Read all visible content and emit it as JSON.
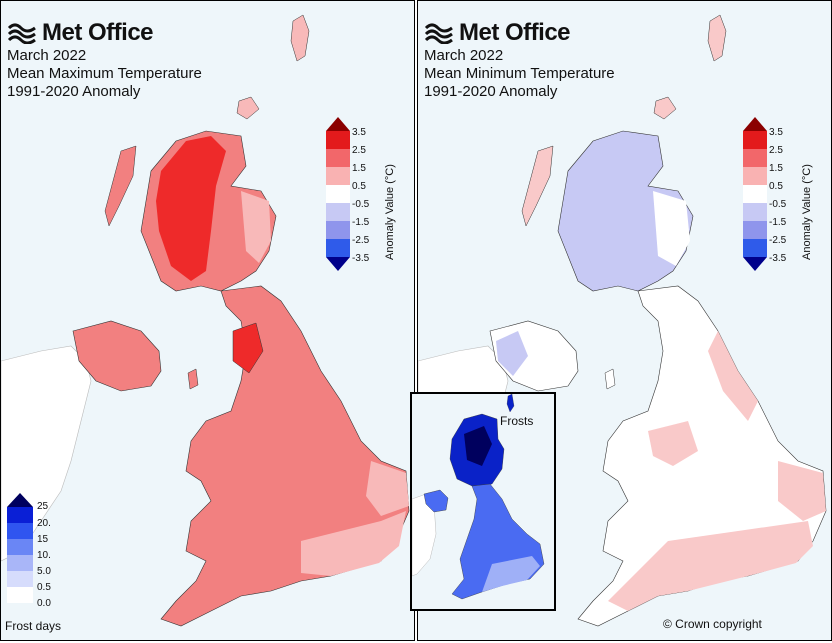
{
  "brand": "Met Office",
  "left_panel": {
    "title_lines": [
      "March 2022",
      "Mean Maximum Temperature",
      "1991-2020 Anomaly"
    ]
  },
  "right_panel": {
    "title_lines": [
      "March 2022",
      "Mean Minimum Temperature",
      "1991-2020 Anomaly"
    ]
  },
  "anomaly_legend": {
    "axis_label": "Anomaly Value (°C)",
    "ticks": [
      "3.5",
      "2.5",
      "1.5",
      "0.5",
      "-0.5",
      "-1.5",
      "-2.5",
      "-3.5"
    ],
    "colors": {
      "over": "#8b0000",
      "b1": "#e31a1c",
      "b2": "#f2676a",
      "b3": "#f9b2b2",
      "b4": "#ffffff",
      "b5": "#c7c9f4",
      "b6": "#8f95ec",
      "b7": "#2f5bea",
      "under": "#00008b"
    }
  },
  "frost_legend": {
    "caption": "Frost days",
    "ticks": [
      "25",
      "20.",
      "15",
      "10.",
      "5.0",
      "0.5",
      "0.0"
    ],
    "colors": [
      "#00005e",
      "#0a1fd6",
      "#2f55f0",
      "#6a86f5",
      "#a9b6f8",
      "#d6dcfc",
      "#ffffff"
    ]
  },
  "inset": {
    "title": "Frosts"
  },
  "copyright": "© Crown copyright",
  "map_colors": {
    "sea": "#eef6fa",
    "tmax_deep": "#ee2a2a",
    "tmax_mid": "#f28080",
    "tmax_light": "#f8b9b9",
    "tmin_blue": "#c7c9f4",
    "tmin_pink": "#f9c9c9",
    "tmin_white": "#ffffff",
    "ireland_gray": "#ffffff",
    "frost_dark": "#0a22c8",
    "frost_mid": "#4a6bf2",
    "frost_light": "#9fb0f7"
  }
}
